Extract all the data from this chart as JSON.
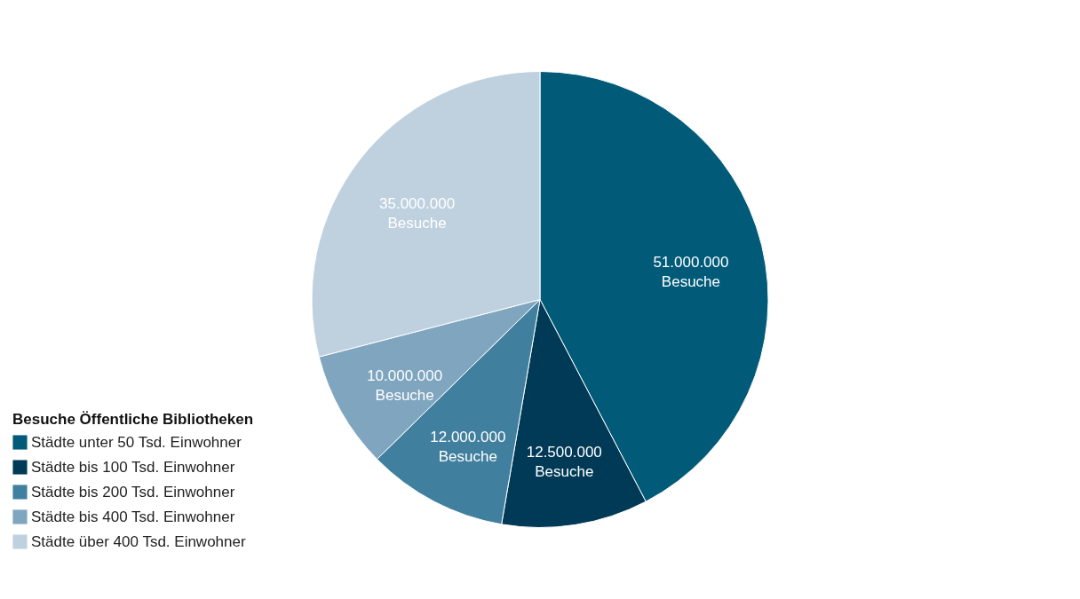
{
  "chart_data": {
    "type": "pie",
    "legend_title": "Besuche Öffentliche Bibliotheken",
    "legend": "bottom left",
    "categories": [
      "Städte unter 50 Tsd. Einwohner",
      "Städte bis 100 Tsd. Einwohner",
      "Städte bis 200 Tsd. Einwohner",
      "Städte bis 400 Tsd. Einwohner",
      "Städte über 400 Tsd. Einwohner"
    ],
    "values": [
      51000000,
      12500000,
      12000000,
      10000000,
      35000000
    ],
    "colors": [
      "#005a78",
      "#003a57",
      "#417f9e",
      "#7fa5bf",
      "#bfd1df"
    ],
    "value_labels": [
      "51.000.000\nBesuche",
      "12.500.000\nBesuche",
      "12.000.000\nBesuche",
      "10.000.000\nBesuche",
      "35.000.000\nBesuche"
    ]
  }
}
